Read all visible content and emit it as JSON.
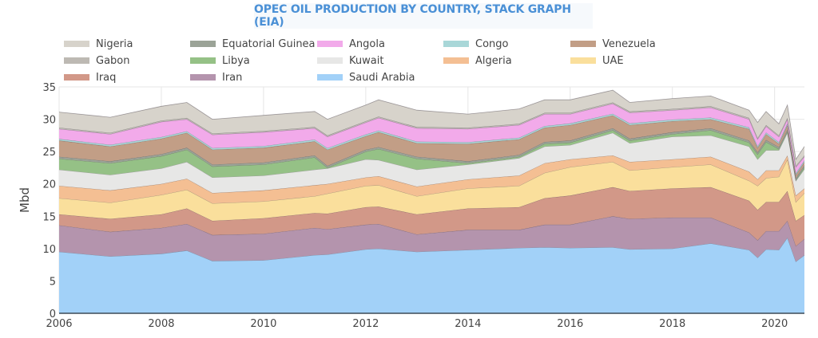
{
  "chart_data": {
    "type": "area",
    "stacked": true,
    "title": "OPEC OIL PRODUCTION BY COUNTRY, STACK GRAPH (EIA)",
    "xlabel": "",
    "ylabel": "Mbd",
    "xlim": [
      "2006-01",
      "2020-08"
    ],
    "ylim": [
      0,
      35
    ],
    "x_ticks": [
      "2006",
      "2008",
      "2010",
      "2012",
      "2014",
      "2016",
      "2018",
      "2020"
    ],
    "y_ticks": [
      "0",
      "5",
      "10",
      "15",
      "20",
      "25",
      "30",
      "35"
    ],
    "grid": true,
    "legend_position": "top",
    "x": [
      "2006-01",
      "2007-01",
      "2008-01",
      "2008-07",
      "2009-01",
      "2010-01",
      "2011-01",
      "2011-04",
      "2012-01",
      "2012-04",
      "2013-01",
      "2014-01",
      "2015-01",
      "2015-07",
      "2016-01",
      "2016-11",
      "2017-03",
      "2018-01",
      "2018-10",
      "2019-07",
      "2019-09",
      "2019-11",
      "2020-02",
      "2020-04",
      "2020-06",
      "2020-08"
    ],
    "legend_order": [
      "Nigeria",
      "Equatorial Guinea",
      "Angola",
      "Congo",
      "Venezuela",
      "Gabon",
      "Libya",
      "Kuwait",
      "Algeria",
      "UAE",
      "Iraq",
      "Iran",
      "Saudi Arabia"
    ],
    "series": [
      {
        "name": "Saudi Arabia",
        "color": "#a2d1f8",
        "values": [
          9.5,
          8.8,
          9.2,
          9.7,
          8.1,
          8.2,
          9.0,
          9.1,
          9.9,
          10.0,
          9.5,
          9.8,
          10.1,
          10.2,
          10.1,
          10.2,
          9.9,
          10.0,
          10.8,
          9.8,
          8.6,
          9.9,
          9.8,
          11.7,
          8.0,
          9.0
        ]
      },
      {
        "name": "Iran",
        "color": "#b494ad",
        "values": [
          4.1,
          3.8,
          4.0,
          4.1,
          4.0,
          4.1,
          4.2,
          3.9,
          3.8,
          3.8,
          2.7,
          3.1,
          2.8,
          3.5,
          3.6,
          4.8,
          4.7,
          4.8,
          4.0,
          2.7,
          2.7,
          2.8,
          2.9,
          2.6,
          2.4,
          2.5
        ]
      },
      {
        "name": "Iraq",
        "color": "#d29888",
        "values": [
          1.7,
          2.0,
          2.1,
          2.4,
          2.2,
          2.4,
          2.3,
          2.4,
          2.7,
          2.7,
          3.1,
          3.3,
          3.5,
          4.1,
          4.5,
          4.5,
          4.3,
          4.5,
          4.7,
          4.9,
          4.7,
          4.5,
          4.5,
          4.6,
          3.9,
          3.7
        ]
      },
      {
        "name": "UAE",
        "color": "#fadf9c",
        "values": [
          2.5,
          2.5,
          3.0,
          2.9,
          2.7,
          2.6,
          2.6,
          3.1,
          3.3,
          3.3,
          2.8,
          3.1,
          3.3,
          3.9,
          4.4,
          3.9,
          3.2,
          3.3,
          3.5,
          3.1,
          3.7,
          3.7,
          3.9,
          4.9,
          2.9,
          3.4
        ]
      },
      {
        "name": "Algeria",
        "color": "#f4bf93",
        "values": [
          1.9,
          1.9,
          1.7,
          1.7,
          1.6,
          1.7,
          1.7,
          1.5,
          1.3,
          1.4,
          1.5,
          1.4,
          1.6,
          1.5,
          1.2,
          1.0,
          1.3,
          1.2,
          1.2,
          1.4,
          1.0,
          1.2,
          1.0,
          0.6,
          1.0,
          0.7
        ]
      },
      {
        "name": "Kuwait",
        "color": "#e7e7e6",
        "values": [
          2.5,
          2.4,
          2.4,
          2.6,
          2.4,
          2.3,
          2.4,
          2.4,
          2.8,
          2.5,
          2.6,
          2.3,
          2.7,
          2.6,
          2.2,
          3.5,
          2.9,
          3.5,
          3.3,
          3.9,
          3.1,
          3.1,
          3.1,
          3.5,
          2.3,
          3.0
        ]
      },
      {
        "name": "Libya",
        "color": "#95c186",
        "values": [
          1.7,
          1.8,
          1.9,
          1.9,
          1.7,
          1.7,
          1.9,
          0.1,
          1.2,
          1.7,
          1.7,
          0.2,
          0.2,
          0.4,
          0.4,
          0.4,
          0.4,
          0.4,
          0.8,
          0.6,
          0.8,
          1.3,
          0.2,
          0.2,
          0.1,
          0.3
        ]
      },
      {
        "name": "Equatorial Guinea",
        "color": "#9ba397",
        "values": [
          0.3,
          0.3,
          0.3,
          0.3,
          0.3,
          0.3,
          0.3,
          0.3,
          0.3,
          0.3,
          0.3,
          0.3,
          0.3,
          0.3,
          0.3,
          0.3,
          0.3,
          0.3,
          0.3,
          0.3,
          0.3,
          0.3,
          0.3,
          0.3,
          0.3,
          0.3
        ]
      },
      {
        "name": "Venezuela",
        "color": "#c29e86",
        "values": [
          2.5,
          2.3,
          2.4,
          2.3,
          2.3,
          2.3,
          2.2,
          2.5,
          2.1,
          2.3,
          2.1,
          2.7,
          2.4,
          2.2,
          2.4,
          2.0,
          2.1,
          1.7,
          1.4,
          1.8,
          0.7,
          0.9,
          0.5,
          0.7,
          0.5,
          0.5
        ]
      },
      {
        "name": "Congo",
        "color": "#a9d7d8",
        "values": [
          0.25,
          0.25,
          0.25,
          0.25,
          0.25,
          0.25,
          0.25,
          0.25,
          0.25,
          0.25,
          0.25,
          0.25,
          0.25,
          0.25,
          0.25,
          0.25,
          0.25,
          0.25,
          0.25,
          0.25,
          0.25,
          0.25,
          0.25,
          0.25,
          0.25,
          0.25
        ]
      },
      {
        "name": "Angola",
        "color": "#f2aaea",
        "values": [
          1.55,
          1.65,
          2.35,
          1.85,
          2.05,
          2.15,
          1.75,
          1.75,
          1.85,
          1.95,
          2.05,
          2.05,
          1.95,
          1.85,
          1.45,
          1.55,
          1.65,
          1.45,
          1.55,
          1.25,
          1.05,
          0.95,
          0.85,
          0.65,
          0.95,
          0.55
        ]
      },
      {
        "name": "Gabon",
        "color": "#bdb9b3",
        "values": [
          0.2,
          0.2,
          0.2,
          0.2,
          0.2,
          0.2,
          0.2,
          0.2,
          0.2,
          0.2,
          0.2,
          0.2,
          0.2,
          0.2,
          0.2,
          0.2,
          0.2,
          0.2,
          0.2,
          0.2,
          0.2,
          0.2,
          0.2,
          0.2,
          0.2,
          0.2
        ]
      },
      {
        "name": "Nigeria",
        "color": "#d7d3cb",
        "values": [
          2.4,
          2.4,
          2.2,
          2.4,
          2.2,
          2.4,
          2.4,
          2.5,
          2.5,
          2.6,
          2.6,
          2.1,
          2.3,
          2.0,
          2.0,
          1.9,
          1.4,
          1.6,
          1.6,
          1.2,
          2.4,
          2.1,
          1.8,
          2.0,
          1.0,
          1.4
        ]
      }
    ]
  }
}
